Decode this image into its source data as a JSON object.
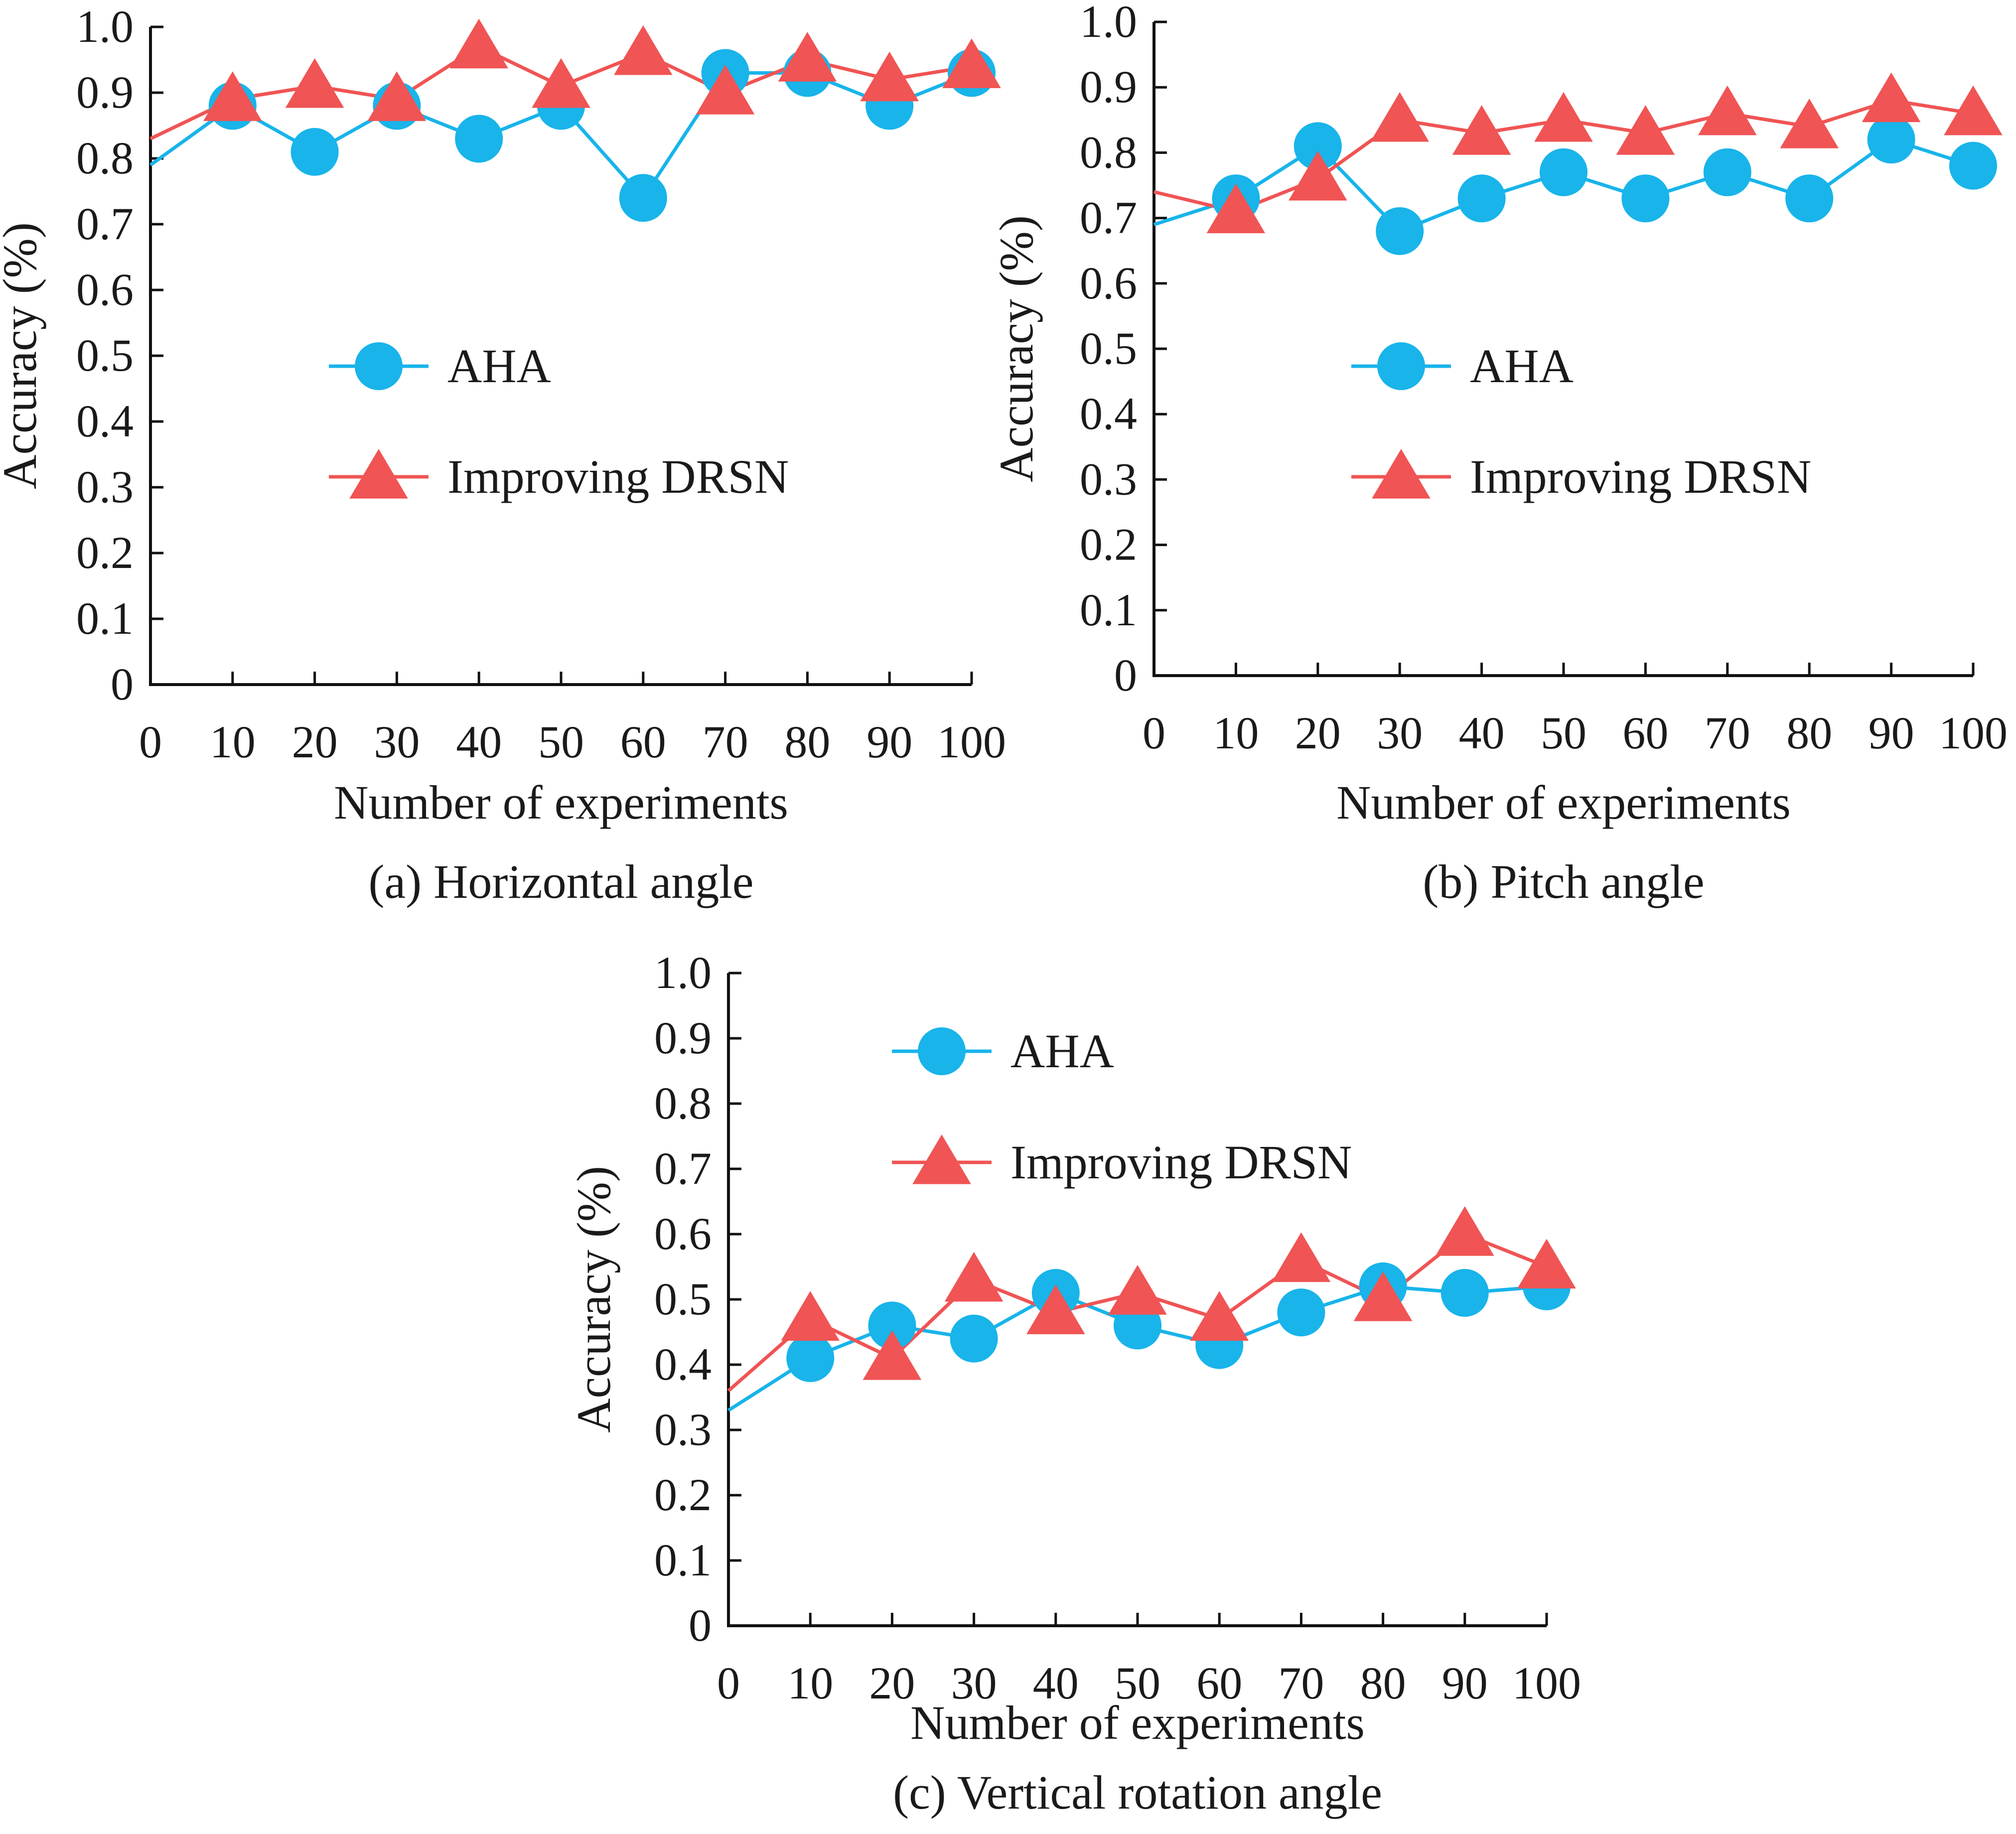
{
  "colors": {
    "aha": "#18b4ea",
    "drsn": "#f05454",
    "axis": "#111111"
  },
  "chart_data": [
    {
      "type": "line",
      "caption": "(a) Horizontal angle",
      "xlabel": "Number of experiments",
      "ylabel": "Accuracy (%)",
      "xlim": [
        0,
        100
      ],
      "ylim": [
        0,
        1.0
      ],
      "xticks": [
        "0",
        "10",
        "20",
        "30",
        "40",
        "50",
        "60",
        "70",
        "80",
        "90",
        "100"
      ],
      "yticks": [
        "0",
        "0.1",
        "0.2",
        "0.3",
        "0.4",
        "0.5",
        "0.6",
        "0.7",
        "0.8",
        "0.9",
        "1.0"
      ],
      "legend_position": "center-left",
      "x": [
        0,
        10,
        20,
        30,
        40,
        50,
        60,
        70,
        80,
        90,
        100
      ],
      "series": [
        {
          "name": "AHA",
          "marker": "circle",
          "values": [
            0.79,
            0.88,
            0.81,
            0.88,
            0.83,
            0.88,
            0.74,
            0.93,
            0.93,
            0.88,
            0.93
          ]
        },
        {
          "name": "Improving DRSN",
          "marker": "triangle",
          "values": [
            0.83,
            0.89,
            0.91,
            0.89,
            0.97,
            0.91,
            0.96,
            0.9,
            0.95,
            0.92,
            0.94
          ]
        }
      ]
    },
    {
      "type": "line",
      "caption": "(b) Pitch angle",
      "xlabel": "Number of experiments",
      "ylabel": "Accuracy (%)",
      "xlim": [
        0,
        100
      ],
      "ylim": [
        0,
        1.0
      ],
      "xticks": [
        "0",
        "10",
        "20",
        "30",
        "40",
        "50",
        "60",
        "70",
        "80",
        "90",
        "100"
      ],
      "yticks": [
        "0",
        "0.1",
        "0.2",
        "0.3",
        "0.4",
        "0.5",
        "0.6",
        "0.7",
        "0.8",
        "0.9",
        "1.0"
      ],
      "legend_position": "center-left",
      "x": [
        0,
        10,
        20,
        30,
        40,
        50,
        60,
        70,
        80,
        90,
        100
      ],
      "series": [
        {
          "name": "AHA",
          "marker": "circle",
          "values": [
            0.69,
            0.73,
            0.81,
            0.68,
            0.73,
            0.77,
            0.73,
            0.77,
            0.73,
            0.82,
            0.78
          ]
        },
        {
          "name": "Improving DRSN",
          "marker": "triangle",
          "values": [
            0.74,
            0.71,
            0.76,
            0.85,
            0.83,
            0.85,
            0.83,
            0.86,
            0.84,
            0.88,
            0.86
          ]
        }
      ]
    },
    {
      "type": "line",
      "caption": "(c) Vertical rotation angle",
      "xlabel": "Number of experiments",
      "ylabel": "Accuracy (%)",
      "xlim": [
        0,
        100
      ],
      "ylim": [
        0,
        1.0
      ],
      "xticks": [
        "0",
        "10",
        "20",
        "30",
        "40",
        "50",
        "60",
        "70",
        "80",
        "90",
        "100"
      ],
      "yticks": [
        "0",
        "0.1",
        "0.2",
        "0.3",
        "0.4",
        "0.5",
        "0.6",
        "0.7",
        "0.8",
        "0.9",
        "1.0"
      ],
      "legend_position": "top-left",
      "x": [
        0,
        10,
        20,
        30,
        40,
        50,
        60,
        70,
        80,
        90,
        100
      ],
      "series": [
        {
          "name": "AHA",
          "marker": "circle",
          "values": [
            0.33,
            0.41,
            0.46,
            0.44,
            0.51,
            0.46,
            0.43,
            0.48,
            0.52,
            0.51,
            0.52
          ]
        },
        {
          "name": "Improving DRSN",
          "marker": "triangle",
          "values": [
            0.36,
            0.47,
            0.41,
            0.53,
            0.48,
            0.51,
            0.47,
            0.56,
            0.5,
            0.6,
            0.55
          ]
        }
      ]
    }
  ]
}
